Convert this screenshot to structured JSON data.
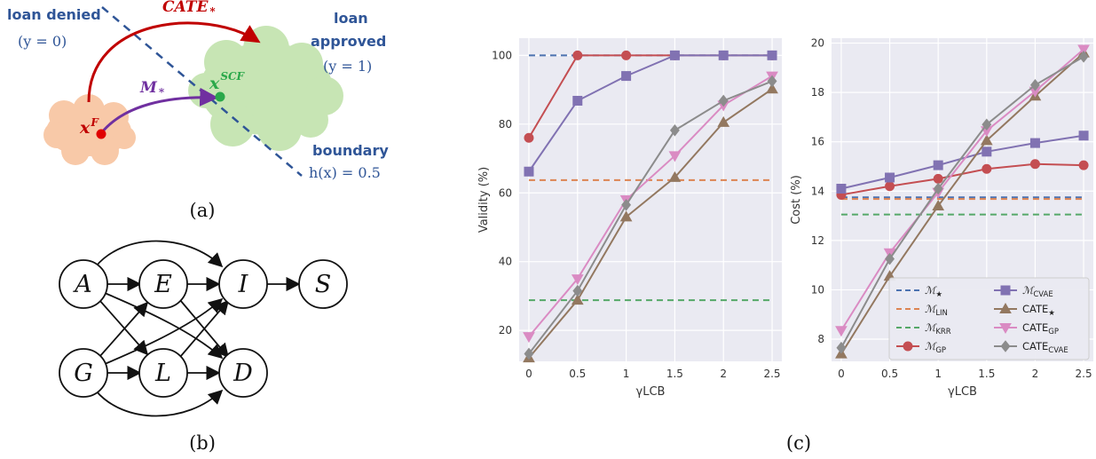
{
  "panel_a": {
    "label": "(a)",
    "loan_denied": "loan denied",
    "y0": "(y = 0)",
    "loan_approved_1": "loan",
    "loan_approved_2": "approved",
    "y1": "(y = 1)",
    "boundary": "boundary",
    "boundary_eq": "h(x) = 0.5",
    "cate_label": "CATE",
    "cate_sub": "*",
    "m_label": "M",
    "m_sub": "*",
    "xf_base": "x",
    "xf_sup": "F",
    "xscf_base": "x",
    "xscf_sup": "SCF",
    "colors": {
      "red": "#c00000",
      "purple": "#7030a0",
      "green": "#2aa84a",
      "blue": "#2f5597",
      "salmon": "#f8c9a8",
      "cloud_green": "#c7e5b4"
    }
  },
  "panel_b": {
    "label": "(b)",
    "nodes": [
      "A",
      "E",
      "I",
      "S",
      "G",
      "L",
      "D"
    ]
  },
  "panel_c": {
    "label": "(c)"
  },
  "chart_data": [
    {
      "type": "line",
      "xlabel": "γLCB",
      "ylabel": "Validity (%)",
      "x": [
        0,
        0.5,
        1,
        1.5,
        2,
        2.5
      ],
      "xticks": [
        "0",
        "0.5",
        "1",
        "1.5",
        "2",
        "2.5"
      ],
      "yticks": [
        "20",
        "40",
        "60",
        "80",
        "100"
      ],
      "ylim": [
        11,
        105
      ],
      "grid": true,
      "series": [
        {
          "name": "M★",
          "style": "dashed",
          "color": "#4c72b0",
          "values": [
            100,
            100,
            100,
            100,
            100,
            100
          ]
        },
        {
          "name": "MLIN",
          "style": "dashed",
          "color": "#dd8452",
          "values": [
            63.7,
            63.7,
            63.7,
            63.7,
            63.7,
            63.7
          ]
        },
        {
          "name": "MKRR",
          "style": "dashed",
          "color": "#55a868",
          "values": [
            28.8,
            28.8,
            28.8,
            28.8,
            28.8,
            28.8
          ]
        },
        {
          "name": "MGP",
          "style": "solid",
          "marker": "circle",
          "color": "#c44e52",
          "values": [
            76,
            100,
            100,
            100,
            100,
            100
          ]
        },
        {
          "name": "MCVAE",
          "style": "solid",
          "marker": "square",
          "color": "#8172b2",
          "values": [
            66.2,
            86.8,
            94,
            100,
            100,
            100
          ]
        },
        {
          "name": "CATE★",
          "style": "solid",
          "marker": "triangle-up",
          "color": "#937860",
          "values": [
            12,
            28.8,
            53,
            64.5,
            80.5,
            90.2
          ]
        },
        {
          "name": "CATEGP",
          "style": "solid",
          "marker": "triangle-down",
          "color": "#da8bc3",
          "values": [
            18.2,
            35,
            58,
            70.8,
            85.5,
            94
          ]
        },
        {
          "name": "CATECVAE",
          "style": "solid",
          "marker": "diamond",
          "color": "#8c8c8c",
          "values": [
            13.2,
            31.5,
            56.5,
            78.2,
            86.8,
            92.5
          ]
        }
      ]
    },
    {
      "type": "line",
      "xlabel": "γLCB",
      "ylabel": "Cost (%)",
      "x": [
        0,
        0.5,
        1,
        1.5,
        2,
        2.5
      ],
      "xticks": [
        "0",
        "0.5",
        "1",
        "1.5",
        "2",
        "2.5"
      ],
      "yticks": [
        "8",
        "10",
        "12",
        "14",
        "16",
        "18",
        "20"
      ],
      "ylim": [
        7.1,
        20.2
      ],
      "grid": true,
      "legend": "bottom-right",
      "series": [
        {
          "name": "M★",
          "style": "dashed",
          "color": "#4c72b0",
          "values": [
            13.75,
            13.75,
            13.75,
            13.75,
            13.75,
            13.75
          ]
        },
        {
          "name": "MLIN",
          "style": "dashed",
          "color": "#dd8452",
          "values": [
            13.68,
            13.68,
            13.68,
            13.68,
            13.68,
            13.68
          ]
        },
        {
          "name": "MKRR",
          "style": "dashed",
          "color": "#55a868",
          "values": [
            13.05,
            13.05,
            13.05,
            13.05,
            13.05,
            13.05
          ]
        },
        {
          "name": "MGP",
          "style": "solid",
          "marker": "circle",
          "color": "#c44e52",
          "values": [
            13.85,
            14.2,
            14.5,
            14.9,
            15.1,
            15.05
          ]
        },
        {
          "name": "MCVAE",
          "style": "solid",
          "marker": "square",
          "color": "#8172b2",
          "values": [
            14.1,
            14.55,
            15.05,
            15.6,
            15.95,
            16.25
          ]
        },
        {
          "name": "CATE★",
          "style": "solid",
          "marker": "triangle-up",
          "color": "#937860",
          "values": [
            7.4,
            10.55,
            13.4,
            16.05,
            17.85,
            19.6
          ]
        },
        {
          "name": "CATEGP",
          "style": "solid",
          "marker": "triangle-down",
          "color": "#da8bc3",
          "values": [
            8.35,
            11.5,
            13.95,
            16.45,
            18.05,
            19.75
          ]
        },
        {
          "name": "CATECVAE",
          "style": "solid",
          "marker": "diamond",
          "color": "#8c8c8c",
          "values": [
            7.65,
            11.25,
            14.1,
            16.7,
            18.3,
            19.45
          ]
        }
      ]
    }
  ]
}
